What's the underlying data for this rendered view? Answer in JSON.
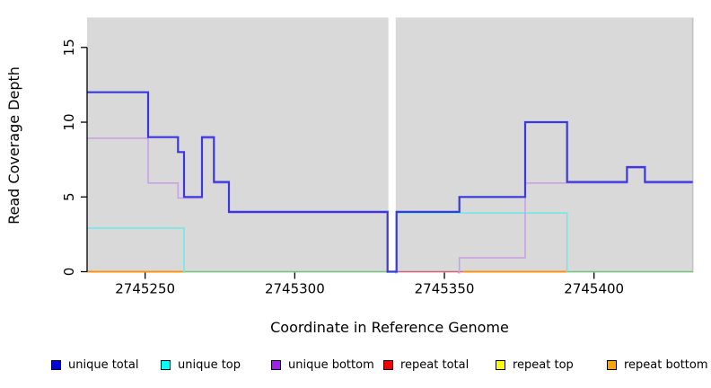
{
  "chart_data": {
    "type": "line",
    "style": "step-after",
    "title": "",
    "xlabel": "Coordinate in Reference Genome",
    "ylabel": "Read Coverage Depth",
    "xlim": [
      2745230.6,
      2745433.0
    ],
    "ylim": [
      0,
      17
    ],
    "grid": false,
    "panel_bg": "#d9d9d9",
    "panel_right_edge_color": "#c3c3c3",
    "gap_band": {
      "start": 2745331,
      "end": 2745334,
      "color": "#ffffff"
    },
    "x_ticks": [
      {
        "label": "2745250",
        "value": 2745250
      },
      {
        "label": "2745300",
        "value": 2745300
      },
      {
        "label": "2745350",
        "value": 2745350
      },
      {
        "label": "2745400",
        "value": 2745400
      }
    ],
    "y_ticks": [
      {
        "label": "0",
        "value": 0
      },
      {
        "label": "5",
        "value": 5
      },
      {
        "label": "10",
        "value": 10
      },
      {
        "label": "15",
        "value": 15
      }
    ],
    "series": [
      {
        "name": "zero-baseline",
        "label": "",
        "color": "#74c47c",
        "width": 1.5,
        "dy": 0,
        "segments": [
          [
            [
              2745263,
              0
            ],
            [
              2745331,
              0
            ]
          ],
          [
            [
              2745391,
              0
            ],
            [
              2745433,
              0
            ]
          ]
        ]
      },
      {
        "name": "repeat-total",
        "label": "repeat total",
        "color": "#cf6678",
        "width": 1.4,
        "dy": 0,
        "segments": [
          [
            [
              2745334,
              0
            ],
            [
              2745356,
              0
            ]
          ]
        ]
      },
      {
        "name": "repeat-top",
        "label": "repeat top",
        "color": "#f5e642",
        "width": 1.4,
        "dy": 0,
        "segments": []
      },
      {
        "name": "repeat-bottom",
        "label": "repeat bottom",
        "color": "#ff9214",
        "width": 1.9,
        "dy": 0,
        "segments": [
          [
            [
              2745230.6,
              0
            ],
            [
              2745263,
              0
            ]
          ],
          [
            [
              2745356,
              0
            ],
            [
              2745391,
              0
            ]
          ]
        ]
      },
      {
        "name": "unique-top",
        "label": "unique top",
        "color": "#74e8e8",
        "width": 1.6,
        "dy": 1.3,
        "segments": [
          [
            [
              2745230.6,
              3
            ],
            [
              2745263,
              0
            ]
          ],
          [
            [
              2745333.5,
              0
            ],
            [
              2745334,
              4
            ],
            [
              2745391,
              0
            ]
          ]
        ]
      },
      {
        "name": "unique-bottom",
        "label": "unique bottom",
        "color": "#c8a2e4",
        "width": 1.6,
        "dy": 1.2,
        "segments": [
          [
            [
              2745230.6,
              9
            ],
            [
              2745251,
              6
            ],
            [
              2745261,
              5
            ],
            [
              2745269,
              9
            ],
            [
              2745273,
              6
            ],
            [
              2745278,
              4
            ],
            [
              2745331,
              0
            ]
          ],
          [
            [
              2745354.5,
              0
            ],
            [
              2745355,
              1
            ],
            [
              2745377,
              6
            ],
            [
              2745411,
              7
            ],
            [
              2745417,
              6
            ],
            [
              2745433,
              6
            ]
          ]
        ]
      },
      {
        "name": "unique-total",
        "label": "unique total",
        "color": "#3939dd",
        "width": 2.2,
        "dy": 0,
        "segments": [
          [
            [
              2745230.6,
              12
            ],
            [
              2745251,
              9
            ],
            [
              2745261,
              8
            ],
            [
              2745263,
              5
            ],
            [
              2745269,
              9
            ],
            [
              2745273,
              6
            ],
            [
              2745278,
              4
            ],
            [
              2745331,
              0
            ],
            [
              2745334,
              4
            ],
            [
              2745355,
              5
            ],
            [
              2745377,
              10
            ],
            [
              2745391,
              6
            ],
            [
              2745411,
              7
            ],
            [
              2745417,
              6
            ],
            [
              2745433,
              6
            ]
          ]
        ]
      }
    ],
    "legend": {
      "position": "bottom",
      "items": [
        {
          "label": "unique total",
          "color": "#0000dd"
        },
        {
          "label": "unique top",
          "color": "#00ffff"
        },
        {
          "label": "unique bottom",
          "color": "#a020f0"
        },
        {
          "label": "repeat total",
          "color": "#ee0000"
        },
        {
          "label": "repeat top",
          "color": "#ffff00"
        },
        {
          "label": "repeat bottom",
          "color": "#ffa500"
        }
      ]
    }
  }
}
